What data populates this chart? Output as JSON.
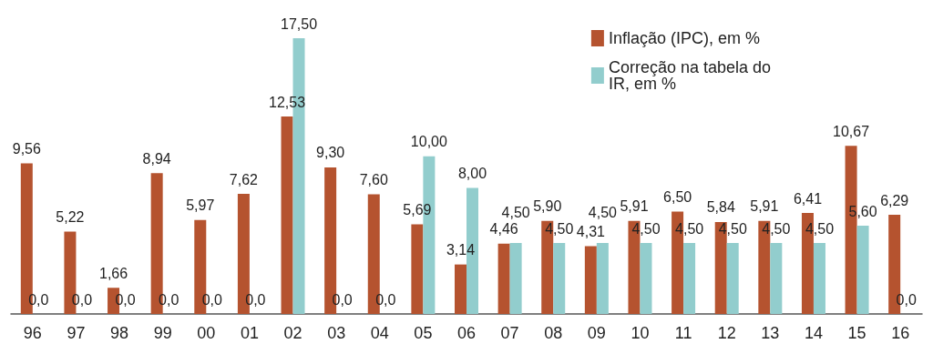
{
  "chart_data": {
    "type": "bar",
    "categories": [
      "96",
      "97",
      "98",
      "99",
      "00",
      "01",
      "02",
      "03",
      "04",
      "05",
      "06",
      "07",
      "08",
      "09",
      "10",
      "11",
      "12",
      "13",
      "14",
      "15",
      "16"
    ],
    "ylim": [
      0,
      17.5
    ],
    "legend": "top right",
    "series": [
      {
        "name": "Inflação (IPC), em %",
        "color": "#b5532f",
        "values": [
          9.56,
          5.22,
          1.66,
          8.94,
          5.97,
          7.62,
          12.53,
          9.3,
          7.6,
          5.69,
          3.14,
          4.46,
          5.9,
          4.31,
          5.91,
          6.5,
          5.84,
          5.91,
          6.41,
          10.67,
          6.29
        ],
        "value_labels": [
          "9,56",
          "5,22",
          "1,66",
          "8,94",
          "5,97",
          "7,62",
          "12,53",
          "9,30",
          "7,60",
          "5,69",
          "3,14",
          "4,46",
          "5,90",
          "4,31",
          "5,91",
          "6,50",
          "5,84",
          "5,91",
          "6,41",
          "10,67",
          "6,29"
        ]
      },
      {
        "name": "Correção na tabela do IR, em %",
        "color": "#92cdcd",
        "values": [
          0,
          0,
          0,
          0,
          0,
          0,
          17.5,
          0,
          0,
          10,
          8,
          4.5,
          4.5,
          4.5,
          4.5,
          4.5,
          4.5,
          4.5,
          4.5,
          5.6,
          0
        ],
        "value_labels": [
          "0,0",
          "0,0",
          "0,0",
          "0,0",
          "0,0",
          "0,0",
          "17,50",
          "0,0",
          "0,0",
          "10,00",
          "8,00",
          "4,50",
          "4,50",
          "4,50",
          "4,50",
          "4,50",
          "4,50",
          "4,50",
          "4,50",
          "5,60",
          "0,0"
        ]
      }
    ]
  }
}
